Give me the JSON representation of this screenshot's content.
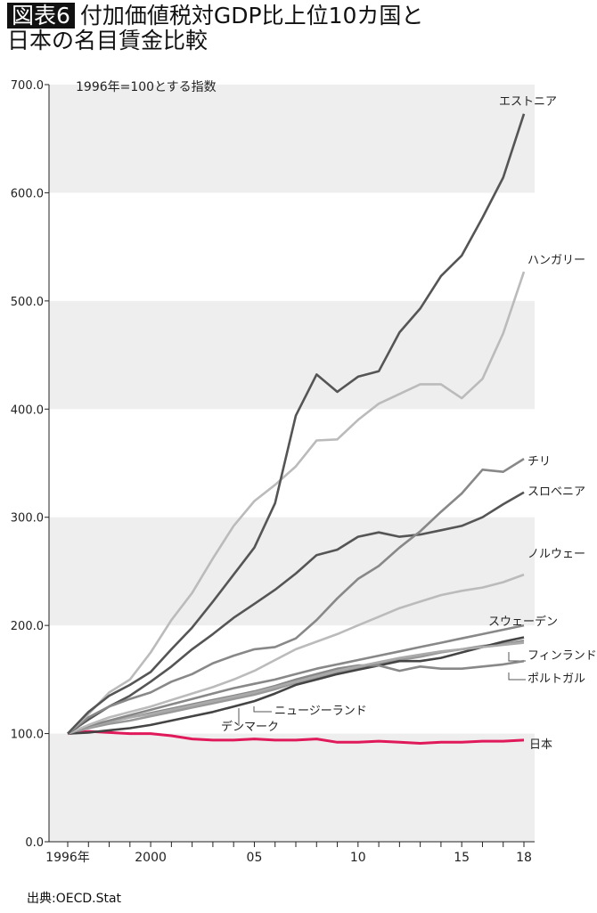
{
  "figure": {
    "badge": "図表6",
    "title_line1": "付加価値税対GDP比上位10カ国と",
    "title_line2": "日本の名目賃金比較",
    "source": "出典:OECD.Stat"
  },
  "chart_data": {
    "type": "line",
    "note": "1996年=100とする指数",
    "x": [
      1996,
      1997,
      1998,
      1999,
      2000,
      2001,
      2002,
      2003,
      2004,
      2005,
      2006,
      2007,
      2008,
      2009,
      2010,
      2011,
      2012,
      2013,
      2014,
      2015,
      2016,
      2017,
      2018
    ],
    "xticks": [
      {
        "v": 1996,
        "label": "1996年"
      },
      {
        "v": 2000,
        "label": "2000"
      },
      {
        "v": 2005,
        "label": "05"
      },
      {
        "v": 2010,
        "label": "10"
      },
      {
        "v": 2015,
        "label": "15"
      },
      {
        "v": 2018,
        "label": "18"
      }
    ],
    "yticks": [
      "0.0",
      "100.0",
      "200.0",
      "300.0",
      "400.0",
      "500.0",
      "600.0",
      "700.0"
    ],
    "ylim": [
      0,
      700
    ],
    "grid": "alternating bands",
    "series": [
      {
        "name": "エストニア",
        "color": "#555555",
        "values": [
          100,
          120,
          135,
          145,
          157,
          178,
          198,
          222,
          247,
          272,
          313,
          394,
          432,
          416,
          430,
          435,
          471,
          493,
          523,
          542,
          577,
          614,
          673
        ]
      },
      {
        "name": "ハンガリー",
        "color": "#bbbbbb",
        "values": [
          100,
          118,
          138,
          150,
          175,
          205,
          230,
          262,
          292,
          315,
          330,
          347,
          371,
          372,
          390,
          405,
          414,
          423,
          423,
          410,
          428,
          470,
          527
        ]
      },
      {
        "name": "チリ",
        "color": "#888888",
        "values": [
          100,
          115,
          125,
          132,
          138,
          148,
          155,
          165,
          172,
          178,
          180,
          188,
          205,
          225,
          243,
          255,
          272,
          287,
          305,
          322,
          344,
          342,
          354
        ]
      },
      {
        "name": "スロベニア",
        "color": "#555555",
        "values": [
          100,
          113,
          125,
          135,
          148,
          162,
          178,
          192,
          207,
          220,
          233,
          248,
          265,
          270,
          282,
          286,
          282,
          284,
          288,
          292,
          300,
          312,
          323
        ]
      },
      {
        "name": "ノルウェー",
        "color": "#bbbbbb",
        "values": [
          100,
          108,
          115,
          120,
          125,
          131,
          137,
          143,
          150,
          158,
          168,
          178,
          185,
          192,
          200,
          208,
          216,
          222,
          228,
          232,
          235,
          240,
          247
        ]
      },
      {
        "name": "スウェーデン",
        "color": "#888888",
        "values": [
          100,
          107,
          112,
          117,
          122,
          127,
          132,
          137,
          142,
          146,
          150,
          155,
          160,
          164,
          168,
          172,
          176,
          180,
          184,
          188,
          192,
          196,
          200
        ]
      },
      {
        "name": "フィンランド",
        "color": "#aaaaaa",
        "values": [
          100,
          106,
          111,
          115,
          118,
          122,
          126,
          130,
          134,
          138,
          143,
          148,
          153,
          158,
          162,
          166,
          170,
          173,
          176,
          178,
          180,
          182,
          184
        ]
      },
      {
        "name": "ポルトガル",
        "color": "#888888",
        "values": [
          100,
          106,
          111,
          115,
          119,
          123,
          127,
          131,
          135,
          139,
          144,
          150,
          155,
          160,
          163,
          163,
          158,
          162,
          160,
          160,
          162,
          164,
          167
        ]
      },
      {
        "name": "デンマーク",
        "color": "#444444",
        "values": [
          100,
          101,
          103,
          105,
          108,
          112,
          116,
          120,
          125,
          130,
          137,
          145,
          150,
          155,
          159,
          163,
          167,
          167,
          170,
          175,
          180,
          185,
          189
        ]
      },
      {
        "name": "ニュージーランド",
        "color": "#999999",
        "values": [
          100,
          105,
          109,
          112,
          116,
          120,
          124,
          128,
          132,
          136,
          141,
          147,
          152,
          157,
          161,
          165,
          168,
          171,
          175,
          178,
          181,
          183,
          186
        ]
      },
      {
        "name": "日本",
        "color": "#e0195a",
        "values": [
          100,
          102,
          101,
          100,
          100,
          98,
          95,
          94,
          94,
          95,
          94,
          94,
          95,
          92,
          92,
          93,
          92,
          91,
          92,
          92,
          93,
          93,
          94
        ]
      }
    ]
  }
}
